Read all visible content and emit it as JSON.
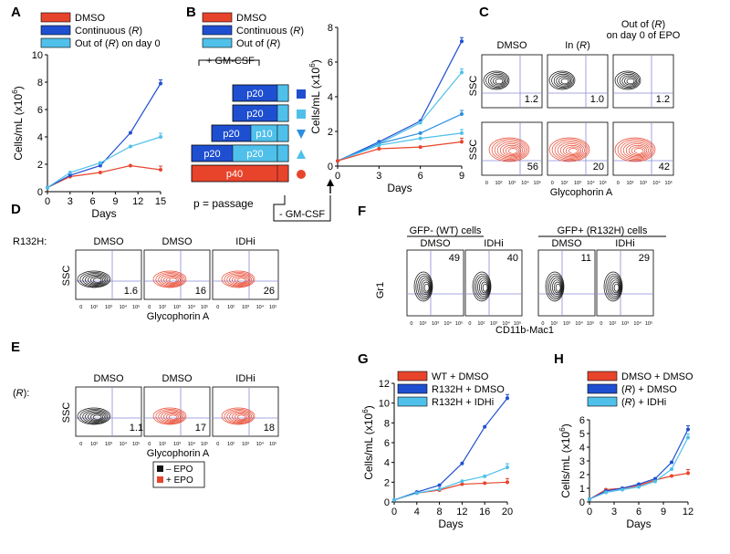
{
  "colors": {
    "red": "#e8442c",
    "blue": "#1f4fd1",
    "lightblue": "#4fc0ea",
    "mid": "#2a8fe0",
    "black": "#111111"
  },
  "panels": {
    "A": "A",
    "B": "B",
    "C": "C",
    "D": "D",
    "E": "E",
    "F": "F",
    "G": "G",
    "H": "H"
  },
  "common": {
    "cells_ylabel": "Cells/mL (x10",
    "cells_ylabel_sup": "6",
    "cells_ylabel_close": ")",
    "days": "Days",
    "ssc": "SSC",
    "glycophorin": "Glycophorin A",
    "dmso": "DMSO",
    "idhi": "IDHi"
  },
  "flow_ticks": [
    "0",
    "10²",
    "10³",
    "10⁴",
    "10⁵"
  ],
  "panel_A": {
    "legend": [
      {
        "label": "DMSO",
        "color": "red"
      },
      {
        "label": "Continuous (",
        "italic": "R",
        "end": ")",
        "color": "blue"
      },
      {
        "label": "Out of (",
        "italic": "R",
        "end": ") on day 0",
        "color": "lightblue"
      }
    ],
    "chart_data": {
      "type": "line",
      "x": [
        0,
        3,
        7,
        11,
        15
      ],
      "xticks": [
        "0",
        "3",
        "6",
        "9",
        "12",
        "15"
      ],
      "xtickvals": [
        0,
        3,
        6,
        9,
        12,
        15
      ],
      "yticks": [
        "0",
        "2",
        "4",
        "6",
        "8",
        "10"
      ],
      "ylim": [
        0,
        10
      ],
      "xlim": [
        0,
        15
      ],
      "series": [
        {
          "name": "DMSO",
          "color": "red",
          "values": [
            0.3,
            1.1,
            1.4,
            1.9,
            1.6
          ]
        },
        {
          "name": "Continuous (R)",
          "color": "blue",
          "values": [
            0.3,
            1.2,
            1.9,
            4.3,
            7.9
          ]
        },
        {
          "name": "Out of (R) on day 0",
          "color": "lightblue",
          "values": [
            0.3,
            1.4,
            2.1,
            3.3,
            4.0
          ]
        }
      ]
    }
  },
  "panel_B": {
    "legend": [
      {
        "label": "DMSO",
        "color": "red"
      },
      {
        "label": "Continuous (",
        "italic": "R",
        "end": ")",
        "color": "blue"
      },
      {
        "label": "Out of (",
        "italic": "R",
        "end": ")",
        "color": "lightblue"
      }
    ],
    "gmcsf_plus": "+ GM-CSF",
    "gmcsf_minus": "- GM-CSF",
    "passage_note": "p = passage",
    "bars": [
      {
        "label": "p20",
        "second": "",
        "marker": "square",
        "mcolor": "blue"
      },
      {
        "label": "p20",
        "second": "",
        "marker": "square",
        "mcolor": "lightblue"
      },
      {
        "label": "p20",
        "second": "p10",
        "marker": "tri-down",
        "mcolor": "mid"
      },
      {
        "label": "p20",
        "second": "p20",
        "marker": "tri-up",
        "mcolor": "lightblue"
      },
      {
        "label": "p40",
        "second": "",
        "marker": "circle",
        "mcolor": "red"
      }
    ],
    "chart_data": {
      "type": "line",
      "x": [
        0,
        3,
        6,
        9
      ],
      "xticks": [
        "0",
        "3",
        "6",
        "9"
      ],
      "yticks": [
        "0",
        "2",
        "4",
        "6",
        "8"
      ],
      "ylim": [
        0,
        8
      ],
      "xlim": [
        0,
        9
      ],
      "series": [
        {
          "color": "blue",
          "values": [
            0.3,
            1.4,
            2.6,
            7.2
          ]
        },
        {
          "color": "lightblue",
          "values": [
            0.3,
            1.3,
            2.5,
            5.4
          ]
        },
        {
          "color": "mid",
          "values": [
            0.3,
            1.3,
            1.9,
            3.0
          ]
        },
        {
          "color": "lightblue",
          "values": [
            0.3,
            1.2,
            1.6,
            1.9
          ]
        },
        {
          "color": "red",
          "values": [
            0.3,
            1.0,
            1.1,
            1.4
          ]
        }
      ]
    }
  },
  "panel_C": {
    "titles": [
      {
        "a": "DMSO",
        "b": ""
      },
      {
        "a": "In (",
        "i": "R",
        "e": ")"
      },
      {
        "a": "Out of (",
        "i": "R",
        "e": ")",
        "line2": "on day 0 of EPO"
      }
    ],
    "top_vals": [
      "1.2",
      "1.0",
      "1.2"
    ],
    "bottom_vals": [
      "56",
      "20",
      "42"
    ]
  },
  "panel_D": {
    "row_label": "R132H:",
    "titles": [
      "DMSO",
      "DMSO",
      "IDHi"
    ],
    "vals": [
      "1.6",
      "16",
      "26"
    ]
  },
  "panel_E": {
    "row_label": "(",
    "row_label_i": "R",
    "row_label_e": "):",
    "titles": [
      "DMSO",
      "DMSO",
      "IDHi"
    ],
    "vals": [
      "1.1",
      "17",
      "18"
    ]
  },
  "epo_legend": [
    {
      "label": "– EPO",
      "color": "black"
    },
    {
      "label": "+ EPO",
      "color": "red"
    }
  ],
  "panel_F": {
    "group1": "GFP- (WT) cells",
    "group2": "GFP+ (R132H) cells",
    "titles": [
      "DMSO",
      "IDHi",
      "DMSO",
      "IDHi"
    ],
    "vals": [
      "49",
      "40",
      "11",
      "29"
    ],
    "ylabel": "Gr1",
    "xlabel": "CD11b-Mac1"
  },
  "panel_G": {
    "legend": [
      {
        "label": "WT + DMSO",
        "color": "red"
      },
      {
        "label": "R132H + DMSO",
        "color": "blue"
      },
      {
        "label": "R132H + IDHi",
        "color": "lightblue"
      }
    ],
    "chart_data": {
      "type": "line",
      "x": [
        0,
        4,
        8,
        12,
        16,
        20
      ],
      "xticks": [
        "0",
        "4",
        "8",
        "12",
        "16",
        "20"
      ],
      "yticks": [
        "0",
        "2",
        "4",
        "6",
        "8",
        "10",
        "12"
      ],
      "ylim": [
        0,
        12
      ],
      "xlim": [
        0,
        20
      ],
      "series": [
        {
          "name": "WT + DMSO",
          "color": "red",
          "values": [
            0.2,
            0.9,
            1.2,
            1.8,
            1.9,
            2.0
          ]
        },
        {
          "name": "R132H + DMSO",
          "color": "blue",
          "values": [
            0.2,
            1.0,
            1.7,
            3.9,
            7.6,
            10.5
          ]
        },
        {
          "name": "R132H + IDHi",
          "color": "lightblue",
          "values": [
            0.2,
            0.9,
            1.3,
            2.1,
            2.6,
            3.5
          ]
        }
      ]
    }
  },
  "panel_H": {
    "legend": [
      {
        "label": "DMSO + DMSO",
        "color": "red"
      },
      {
        "label": "(",
        "italic": "R",
        "end": ") + DMSO",
        "color": "blue"
      },
      {
        "label": "(",
        "italic": "R",
        "end": ") + IDHi",
        "color": "lightblue"
      }
    ],
    "chart_data": {
      "type": "line",
      "x": [
        0,
        2,
        4,
        6,
        8,
        10,
        12
      ],
      "xticks": [
        "0",
        "3",
        "6",
        "9",
        "12"
      ],
      "xtickvals": [
        0,
        3,
        6,
        9,
        12
      ],
      "yticks": [
        "0",
        "1",
        "2",
        "3",
        "4",
        "5",
        "6"
      ],
      "ylim": [
        0,
        6
      ],
      "xlim": [
        0,
        12
      ],
      "series": [
        {
          "name": "DMSO + DMSO",
          "color": "red",
          "values": [
            0.2,
            0.9,
            1.0,
            1.2,
            1.6,
            1.9,
            2.1
          ]
        },
        {
          "name": "(R) + DMSO",
          "color": "blue",
          "values": [
            0.2,
            0.8,
            1.0,
            1.3,
            1.7,
            2.9,
            5.3
          ]
        },
        {
          "name": "(R) + IDHi",
          "color": "lightblue",
          "values": [
            0.2,
            0.7,
            0.9,
            1.1,
            1.5,
            2.4,
            4.7
          ]
        }
      ]
    }
  }
}
